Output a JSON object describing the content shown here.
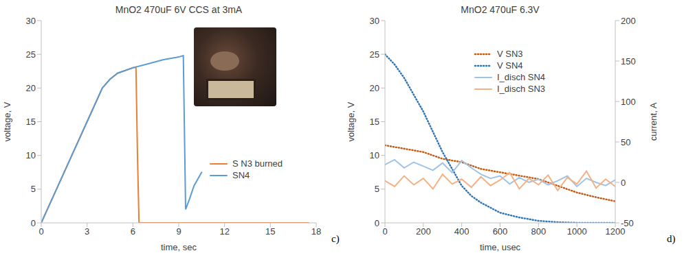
{
  "chart_data": [
    {
      "type": "line",
      "title": "MnO2 470uF 6V CCS at 3mA",
      "annotations": [
        "c)"
      ],
      "x_label": "time, sec",
      "y_label": "voltage, V",
      "xlim": [
        0,
        18
      ],
      "xticks": [
        0,
        3,
        6,
        9,
        12,
        15,
        18
      ],
      "ylim": [
        0,
        30
      ],
      "yticks": [
        0,
        5,
        10,
        15,
        20,
        25,
        30
      ],
      "grid": false,
      "legend": "lower right",
      "series": [
        {
          "name": "S N3 burned",
          "color": "#ED7D31",
          "line_style": "solid",
          "x": [
            0,
            1,
            2,
            3,
            4,
            4.5,
            5,
            6,
            6.2,
            6.3,
            6.4,
            8,
            10,
            12,
            14,
            16,
            17.5
          ],
          "values": [
            0,
            5,
            10,
            15,
            20,
            21.3,
            22.2,
            23,
            23.1,
            10,
            0,
            0,
            0,
            0,
            0,
            0,
            0
          ]
        },
        {
          "name": "SN4",
          "color": "#5B9BD5",
          "line_style": "solid",
          "x": [
            0,
            1,
            2,
            3,
            4,
            4.5,
            5,
            6,
            7,
            8,
            9,
            9.3,
            9.45,
            9.7,
            10,
            10.5
          ],
          "values": [
            0,
            5,
            10,
            15,
            20,
            21.3,
            22.2,
            23,
            23.6,
            24.2,
            24.6,
            24.8,
            2,
            3.5,
            5.5,
            7.5
          ]
        }
      ]
    },
    {
      "type": "line",
      "title": "MnO2 470uF 6.3V",
      "annotations": [
        "d)"
      ],
      "x_label": "time, usec",
      "y_label": "voltage, V",
      "y2_label": "current, A",
      "xlim": [
        0,
        1200
      ],
      "xticks": [
        0,
        200,
        400,
        600,
        800,
        1000,
        1200
      ],
      "ylim": [
        0,
        30
      ],
      "yticks": [
        0,
        5,
        10,
        15,
        20,
        25,
        30
      ],
      "y2lim": [
        -50,
        200
      ],
      "y2ticks": [
        -50,
        0,
        50,
        100,
        150,
        200
      ],
      "grid": false,
      "legend": "upper right",
      "series": [
        {
          "name": "V SN3",
          "color": "#C55A11",
          "line_style": "dotted",
          "x": [
            0,
            100,
            200,
            300,
            400,
            500,
            600,
            700,
            800,
            900,
            1000,
            1100,
            1200
          ],
          "values": [
            11.5,
            11,
            10.5,
            9.5,
            9,
            8,
            7.5,
            7,
            6.5,
            5.5,
            4.5,
            3.8,
            3.2
          ]
        },
        {
          "name": "V SN4",
          "color": "#2E75B6",
          "line_style": "dotted",
          "x": [
            0,
            50,
            100,
            150,
            200,
            250,
            300,
            350,
            400,
            450,
            500,
            600,
            700,
            800,
            900,
            1000,
            1100,
            1200
          ],
          "values": [
            25,
            23.5,
            21.5,
            19,
            16.5,
            13.5,
            10.5,
            8,
            5.5,
            4,
            3,
            1.5,
            0.8,
            0.3,
            0.1,
            0,
            0,
            0
          ]
        },
        {
          "name": "I_disch SN4",
          "color": "#9DC3E6",
          "line_style": "solid",
          "axis": "y2",
          "x": [
            0,
            50,
            100,
            150,
            200,
            250,
            300,
            350,
            400,
            450,
            500,
            550,
            600,
            650,
            700,
            750,
            800,
            850,
            900,
            950,
            1000,
            1050,
            1100,
            1150,
            1200
          ],
          "values": [
            22,
            28,
            18,
            25,
            20,
            15,
            24,
            12,
            27,
            18,
            10,
            5,
            8,
            -2,
            6,
            0,
            4,
            -3,
            2,
            8,
            -5,
            5,
            0,
            -4,
            3
          ]
        },
        {
          "name": "I_disch SN3",
          "color": "#F4B183",
          "line_style": "solid",
          "axis": "y2",
          "x": [
            0,
            50,
            100,
            150,
            200,
            250,
            300,
            350,
            400,
            450,
            500,
            550,
            600,
            650,
            700,
            750,
            800,
            850,
            900,
            950,
            1000,
            1050,
            1100,
            1150,
            1200
          ],
          "values": [
            2,
            -5,
            8,
            -3,
            5,
            -8,
            10,
            -2,
            4,
            -6,
            7,
            -4,
            3,
            12,
            -8,
            5,
            -3,
            9,
            -10,
            6,
            -2,
            14,
            -7,
            4,
            -5
          ]
        }
      ]
    }
  ]
}
